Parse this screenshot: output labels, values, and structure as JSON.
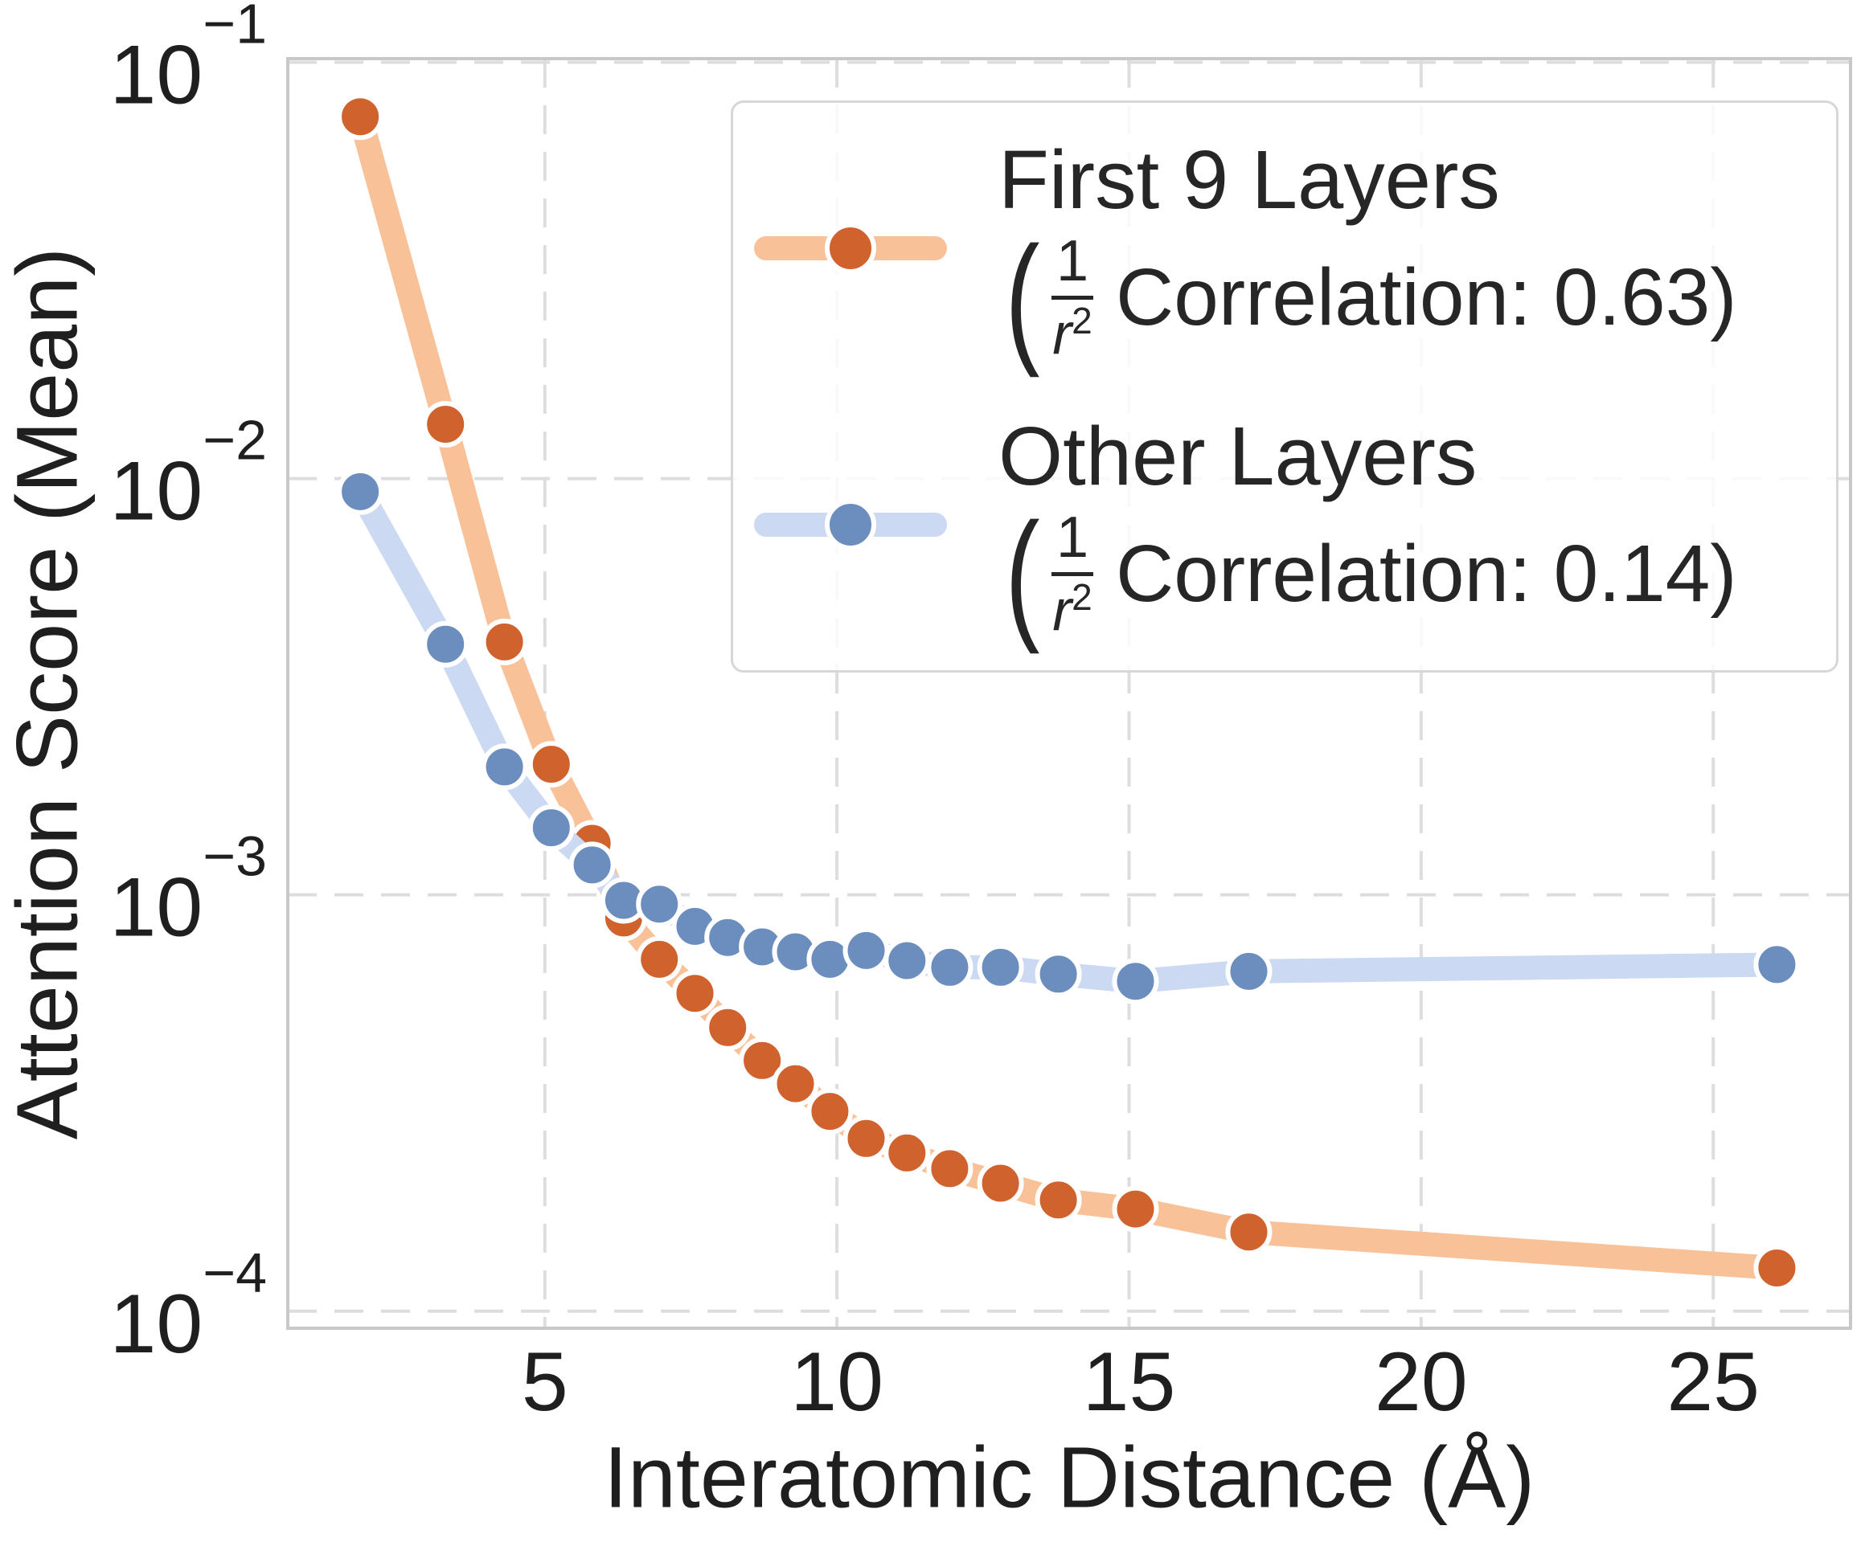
{
  "figure": {
    "background": "#ffffff",
    "text_color": "#262626",
    "grid_color": "#DDDDDD",
    "spine_color": "#C8C8C8"
  },
  "axes": {
    "x": {
      "label": "Interatomic Distance (Å)",
      "ticks": [
        5,
        10,
        15,
        20,
        25
      ]
    },
    "y": {
      "label": "Attention Score (Mean)",
      "tick_base": "10",
      "tick_exponents": [
        -1,
        -2,
        -3,
        -4
      ]
    }
  },
  "legend": {
    "items": [
      {
        "name": "First 9 Layers",
        "open_paren": "(",
        "frac_numerator": "1",
        "frac_denominator_base": "r",
        "frac_denominator_exponent": "2",
        "correlation_text": "Correlation: 0.63)",
        "marker_color": "#D0622D",
        "line_color": "#F9C197"
      },
      {
        "name": "Other Layers",
        "open_paren": "(",
        "frac_numerator": "1",
        "frac_denominator_base": "r",
        "frac_denominator_exponent": "2",
        "correlation_text": "Correlation: 0.14)",
        "marker_color": "#6C8EBE",
        "line_color": "#CBDAF2"
      }
    ]
  },
  "chart_data": {
    "type": "line",
    "title": "",
    "xlabel": "Interatomic Distance (Å)",
    "ylabel": "Attention Score (Mean)",
    "xscale": "linear",
    "yscale": "log",
    "xlim": [
      0.6,
      27.35
    ],
    "ylim": [
      9.1e-05,
      0.102
    ],
    "grid": true,
    "legend_position": "upper right",
    "x": [
      1.84,
      3.3,
      4.31,
      5.11,
      5.81,
      6.35,
      6.96,
      7.57,
      8.13,
      8.72,
      9.29,
      9.88,
      10.5,
      11.2,
      11.93,
      12.8,
      13.79,
      15.11,
      17.05,
      26.09
    ],
    "series": [
      {
        "name": "First 9 Layers (1/r² Correlation: 0.63)",
        "marker_color": "#D0622D",
        "line_color": "#F9C197",
        "values": [
          0.074,
          0.0135,
          0.00405,
          0.00206,
          0.00133,
          0.00088,
          0.0007,
          0.00058,
          0.00048,
          0.0004,
          0.000352,
          0.000302,
          0.00026,
          0.00024,
          0.00022,
          0.000203,
          0.000185,
          0.000176,
          0.000155,
          0.000127
        ]
      },
      {
        "name": "Other Layers (1/r² Correlation: 0.14)",
        "marker_color": "#6C8EBE",
        "line_color": "#CBDAF2",
        "values": [
          0.0093,
          0.004,
          0.00203,
          0.00145,
          0.00118,
          0.00097,
          0.00095,
          0.00084,
          0.00079,
          0.00075,
          0.00073,
          0.0007,
          0.000735,
          0.000695,
          0.00067,
          0.00067,
          0.000645,
          0.00062,
          0.000655,
          0.00068
        ]
      }
    ],
    "style": {
      "line_width": 30,
      "marker_radius": 26,
      "marker_edge_color": "#ffffff",
      "marker_edge_width": 6
    }
  }
}
